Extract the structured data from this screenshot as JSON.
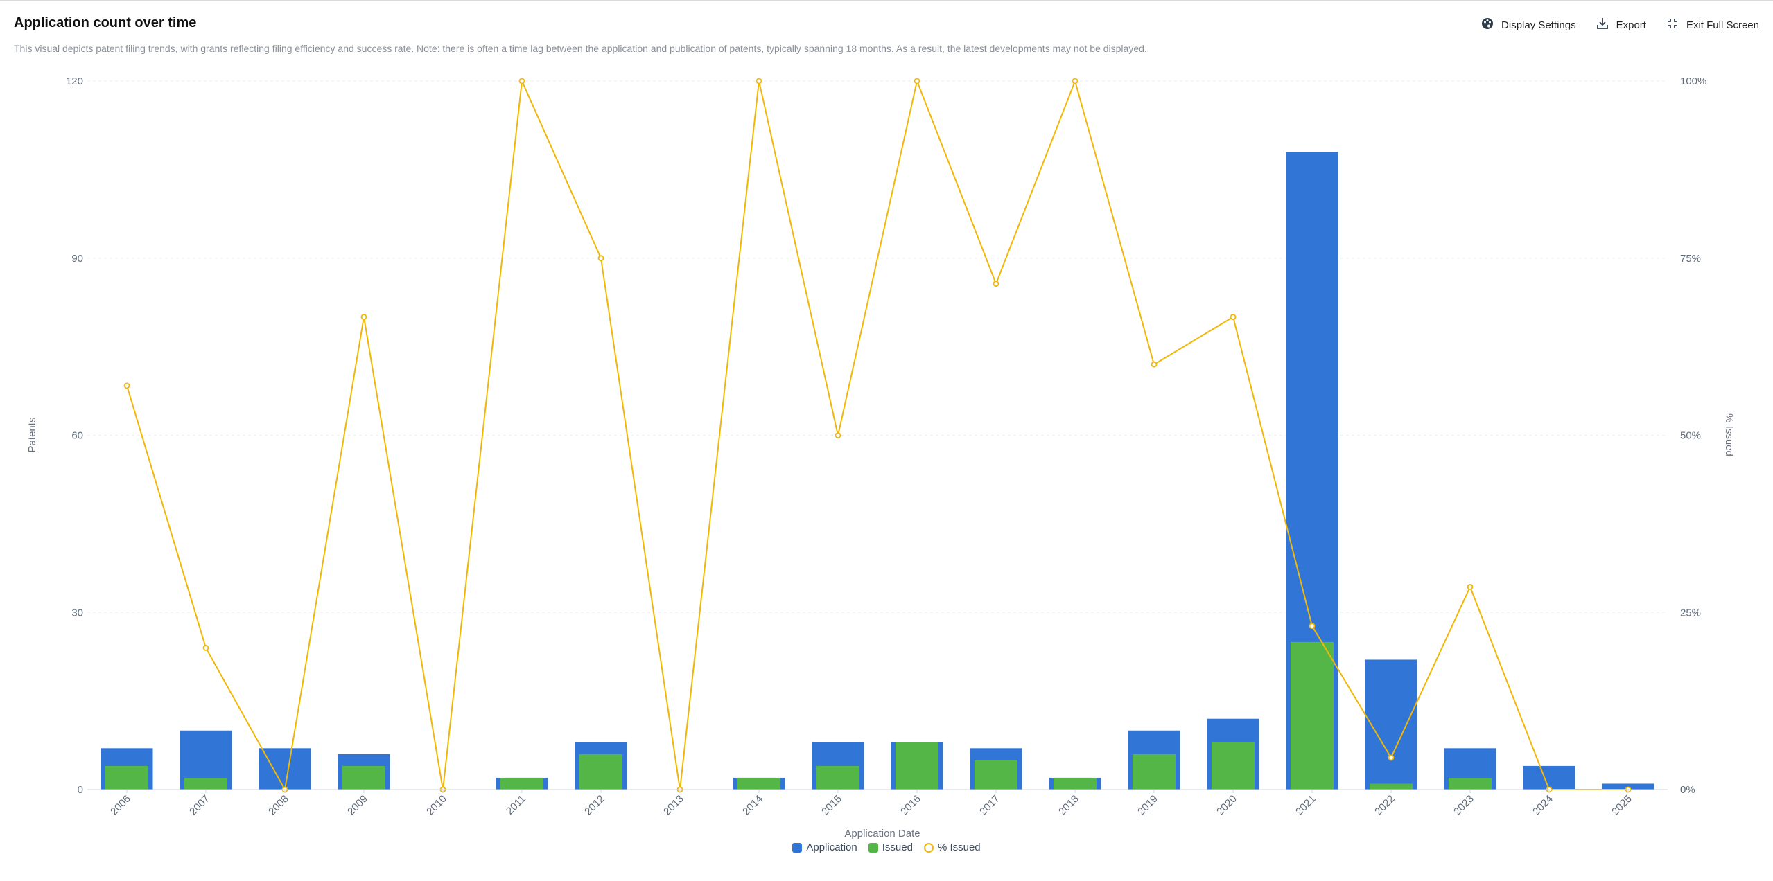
{
  "header": {
    "title": "Application count over time",
    "description": "This visual depicts patent filing trends, with grants reflecting filing efficiency and success rate. Note: there is often a time lag between the application and publication of patents, typically spanning 18 months. As a result, the latest developments may not be displayed."
  },
  "toolbar": {
    "display_settings": "Display Settings",
    "export": "Export",
    "exit_full_screen": "Exit Full Screen"
  },
  "colors": {
    "application": "#3176d6",
    "issued": "#53b646",
    "percent": "#f2b705"
  },
  "chart_data": {
    "type": "bar",
    "categories": [
      "2006",
      "2007",
      "2008",
      "2009",
      "2010",
      "2011",
      "2012",
      "2013",
      "2014",
      "2015",
      "2016",
      "2017",
      "2018",
      "2019",
      "2020",
      "2021",
      "2022",
      "2023",
      "2024",
      "2025"
    ],
    "series": [
      {
        "name": "Application",
        "type": "bar",
        "axis": "left",
        "values": [
          7,
          10,
          7,
          6,
          0,
          2,
          8,
          0,
          2,
          8,
          8,
          7,
          2,
          10,
          12,
          108,
          22,
          7,
          4,
          1
        ]
      },
      {
        "name": "Issued",
        "type": "bar",
        "axis": "left",
        "values": [
          4,
          2,
          0,
          4,
          0,
          2,
          6,
          0,
          2,
          4,
          8,
          5,
          2,
          6,
          8,
          25,
          1,
          2,
          0,
          0
        ]
      },
      {
        "name": "% Issued",
        "type": "line",
        "axis": "right",
        "values": [
          57,
          20,
          0,
          66.7,
          0,
          100,
          75,
          0,
          100,
          50,
          100,
          71.4,
          100,
          60,
          66.7,
          23.1,
          4.5,
          28.6,
          0,
          0
        ]
      }
    ],
    "xlabel": "Application Date",
    "ylabel": "Patents",
    "y2label": "% Issued",
    "ylim": [
      0,
      120
    ],
    "y2lim": [
      0,
      100
    ],
    "yticks": [
      "0",
      "30",
      "60",
      "90",
      "120"
    ],
    "y2ticks": [
      "0%",
      "25%",
      "50%",
      "75%",
      "100%"
    ],
    "grid": true,
    "legend": "bottom-center"
  }
}
